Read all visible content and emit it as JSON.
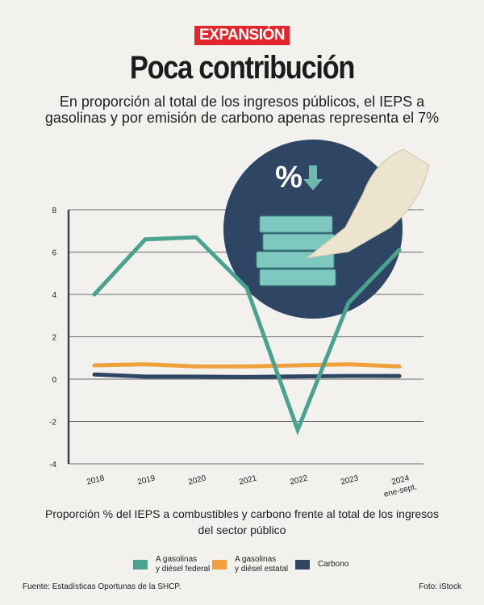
{
  "brand": "EXPANSIÓN",
  "title": "Poca contribución",
  "subtitle": "En proporción al total de los ingresos públicos, el IEPS a gasolinas y por emisión de carbono apenas representa el 7%",
  "chart_data": {
    "type": "line",
    "categories": [
      "2018",
      "2019",
      "2020",
      "2021",
      "2022",
      "2023",
      "2024"
    ],
    "category_sublabels": [
      "",
      "",
      "",
      "",
      "",
      "",
      "ene-sept."
    ],
    "ylim": [
      -4,
      8
    ],
    "yticks": [
      "8",
      "6",
      "4",
      "2",
      "0",
      "-2",
      "-4"
    ],
    "caption": "Proporción % del IEPS a combustibles y carbono frente al total de los ingresos del sector público",
    "series": [
      {
        "name": "A gasolinas y diésel federal",
        "color": "#4aa38e",
        "values": [
          4.0,
          6.6,
          6.7,
          4.3,
          -2.4,
          3.6,
          6.1
        ]
      },
      {
        "name": "A gasolinas y diésel estatal",
        "color": "#f0a13b",
        "values": [
          0.65,
          0.7,
          0.6,
          0.6,
          0.65,
          0.7,
          0.6
        ]
      },
      {
        "name": "Carbono",
        "color": "#2e4664",
        "values": [
          0.22,
          0.12,
          0.12,
          0.1,
          0.13,
          0.15,
          0.15
        ]
      }
    ],
    "illustration_text": "%"
  },
  "legend": [
    {
      "line1": "A gasolinas",
      "line2": "y diésel federal",
      "color": "#4aa38e"
    },
    {
      "line1": "A gasolinas",
      "line2": "y diésel estatal",
      "color": "#f0a13b"
    },
    {
      "line1": "Carbono",
      "line2": "",
      "color": "#2e4664"
    }
  ],
  "footer": {
    "source": "Fuente: Estadísticas Oportunas de la SHCP.",
    "photo": "Foto: iStock"
  }
}
